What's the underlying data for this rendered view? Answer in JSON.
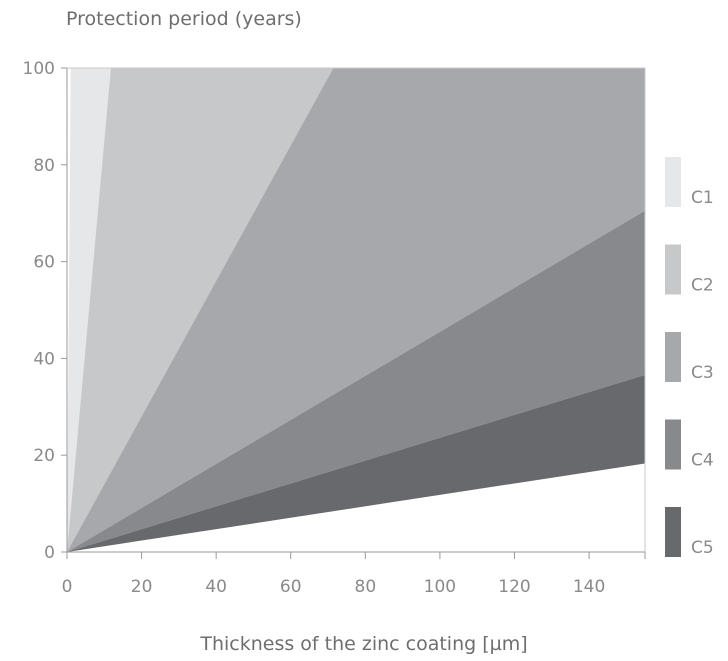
{
  "chart_data": {
    "type": "area",
    "title": "",
    "ylabel": "Protection period (years)",
    "xlabel": "Thickness of the zinc coating [µm]",
    "xlim": [
      0,
      155
    ],
    "ylim": [
      0,
      100
    ],
    "x_ticks": [
      "0",
      "20",
      "40",
      "60",
      "80",
      "100",
      "120",
      "140"
    ],
    "y_ticks": [
      "0",
      "20",
      "40",
      "60",
      "80",
      "100"
    ],
    "grid": false,
    "legend_position": "right",
    "series": [
      {
        "name": "C1",
        "color": "#e6e7e9",
        "upper_slope": 100,
        "lower_slope": 8.5
      },
      {
        "name": "C2",
        "color": "#c7c8ca",
        "upper_slope": 8.5,
        "lower_slope": 1.4
      },
      {
        "name": "C3",
        "color": "#a7a8ab",
        "upper_slope": 1.4,
        "lower_slope": 0.455
      },
      {
        "name": "C4",
        "color": "#88898c",
        "upper_slope": 0.455,
        "lower_slope": 0.236
      },
      {
        "name": "C5",
        "color": "#68696c",
        "upper_slope": 0.236,
        "lower_slope": 0.118
      }
    ]
  }
}
